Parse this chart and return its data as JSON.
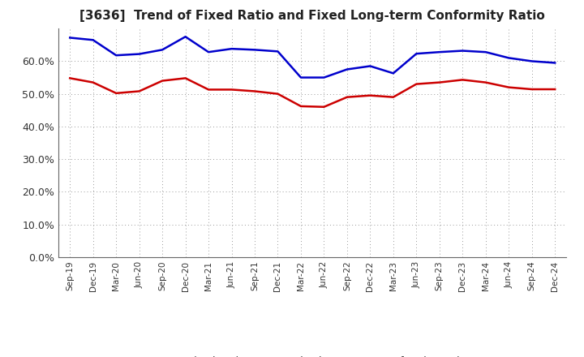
{
  "title": "[3636]  Trend of Fixed Ratio and Fixed Long-term Conformity Ratio",
  "x_labels": [
    "Sep-19",
    "Dec-19",
    "Mar-20",
    "Jun-20",
    "Sep-20",
    "Dec-20",
    "Mar-21",
    "Jun-21",
    "Sep-21",
    "Dec-21",
    "Mar-22",
    "Jun-22",
    "Sep-22",
    "Dec-22",
    "Mar-23",
    "Jun-23",
    "Sep-23",
    "Dec-23",
    "Mar-24",
    "Jun-24",
    "Sep-24",
    "Dec-24"
  ],
  "fixed_ratio": [
    0.672,
    0.665,
    0.618,
    0.622,
    0.635,
    0.675,
    0.628,
    0.638,
    0.635,
    0.63,
    0.55,
    0.55,
    0.575,
    0.585,
    0.563,
    0.623,
    0.628,
    0.632,
    0.628,
    0.61,
    0.6,
    0.595
  ],
  "fixed_lt_ratio": [
    0.548,
    0.535,
    0.502,
    0.508,
    0.54,
    0.548,
    0.513,
    0.513,
    0.508,
    0.5,
    0.462,
    0.46,
    0.49,
    0.495,
    0.49,
    0.53,
    0.535,
    0.543,
    0.535,
    0.52,
    0.514,
    0.514
  ],
  "fixed_ratio_color": "#0000cc",
  "fixed_lt_ratio_color": "#cc0000",
  "ylim": [
    0.0,
    0.7
  ],
  "yticks": [
    0.0,
    0.1,
    0.2,
    0.3,
    0.4,
    0.5,
    0.6
  ],
  "background_color": "#ffffff",
  "grid_color": "#999999",
  "legend_fixed_ratio": "Fixed Ratio",
  "legend_fixed_lt_ratio": "Fixed Long-term Conformity Ratio",
  "line_width": 1.8
}
